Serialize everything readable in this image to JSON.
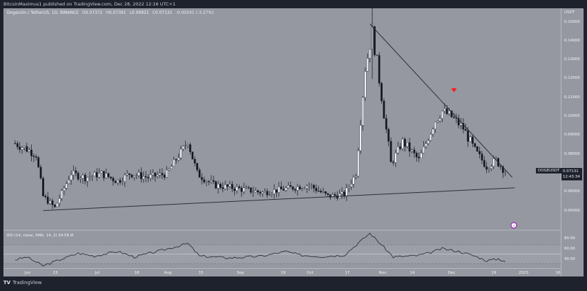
{
  "header": {
    "published_line": "BitcoinMaximus1 published on TradingView.com, Dec 28, 2022 12:16 UTC+1"
  },
  "legend": {
    "symbol": "Dogecoin / TetherUS, 1D, BINANCE",
    "open_label": "O",
    "open": "0.07372",
    "high_label": "H",
    "high": "0.07391",
    "low_label": "L",
    "low": "0.06921",
    "close_label": "C",
    "close": "0.07131",
    "change": "-0.00241 (-3.27%)"
  },
  "rsi_legend": {
    "label": "RSI (14, close, SMA, 14, 2)",
    "value": "34.58",
    "extra": "Ø"
  },
  "price_axis": {
    "currency": "USDT",
    "ticks": [
      "0.15000",
      "0.14000",
      "0.13000",
      "0.12000",
      "0.11000",
      "0.10000",
      "0.09000",
      "0.08000",
      "0.06000",
      "0.05000"
    ]
  },
  "rsi_axis": {
    "ticks": [
      "80.00",
      "60.00",
      "40.00"
    ]
  },
  "last_price": {
    "symbol": "DOGEUSDT",
    "price": "0.07131",
    "countdown": "12:43:34"
  },
  "time_axis": {
    "ticks": [
      "Jun",
      "13",
      "Jul",
      "18",
      "Aug",
      "15",
      "Sep",
      "19",
      "Oct",
      "17",
      "Nov",
      "14",
      "Dec",
      "19",
      "2023",
      "16"
    ]
  },
  "footer": {
    "logo": "TV",
    "brand": "TradingView"
  },
  "colors": {
    "background": "#1e222d",
    "pane": "#9598a1",
    "candle_up": "#ffffff",
    "candle_down": "#131722",
    "trendline": "#2a2e39",
    "marker": "#ff1a1a",
    "event_icon": "#9c27b0"
  },
  "chart_data": {
    "type": "candlestick",
    "title": "Dogecoin / TetherUS, 1D, BINANCE",
    "xlabel": "",
    "ylabel": "USDT",
    "ylim": [
      0.045,
      0.155
    ],
    "x_ticks": [
      "Jun",
      "13",
      "Jul",
      "18",
      "Aug",
      "15",
      "Sep",
      "19",
      "Oct",
      "17",
      "Nov",
      "14",
      "Dec",
      "19",
      "2023",
      "16"
    ],
    "y_ticks": [
      0.05,
      0.06,
      0.08,
      0.09,
      0.1,
      0.11,
      0.12,
      0.13,
      0.14,
      0.15
    ],
    "last": {
      "open": 0.07372,
      "high": 0.07391,
      "low": 0.06921,
      "close": 0.07131,
      "change": -0.00241,
      "change_pct": -3.27
    },
    "approx_close_path": [
      {
        "date": "2022-06-01",
        "close": 0.086
      },
      {
        "date": "2022-06-06",
        "close": 0.083
      },
      {
        "date": "2022-06-10",
        "close": 0.08
      },
      {
        "date": "2022-06-13",
        "close": 0.058
      },
      {
        "date": "2022-06-18",
        "close": 0.052
      },
      {
        "date": "2022-06-25",
        "close": 0.07
      },
      {
        "date": "2022-07-01",
        "close": 0.068
      },
      {
        "date": "2022-07-08",
        "close": 0.07
      },
      {
        "date": "2022-07-15",
        "close": 0.066
      },
      {
        "date": "2022-07-20",
        "close": 0.07
      },
      {
        "date": "2022-07-28",
        "close": 0.068
      },
      {
        "date": "2022-08-05",
        "close": 0.07
      },
      {
        "date": "2022-08-14",
        "close": 0.087
      },
      {
        "date": "2022-08-18",
        "close": 0.07
      },
      {
        "date": "2022-08-25",
        "close": 0.064
      },
      {
        "date": "2022-09-05",
        "close": 0.062
      },
      {
        "date": "2022-09-15",
        "close": 0.06
      },
      {
        "date": "2022-09-25",
        "close": 0.062
      },
      {
        "date": "2022-10-05",
        "close": 0.064
      },
      {
        "date": "2022-10-13",
        "close": 0.058
      },
      {
        "date": "2022-10-20",
        "close": 0.059
      },
      {
        "date": "2022-10-25",
        "close": 0.07
      },
      {
        "date": "2022-10-29",
        "close": 0.125
      },
      {
        "date": "2022-11-01",
        "close": 0.145
      },
      {
        "date": "2022-11-04",
        "close": 0.12
      },
      {
        "date": "2022-11-09",
        "close": 0.075
      },
      {
        "date": "2022-11-14",
        "close": 0.087
      },
      {
        "date": "2022-11-21",
        "close": 0.077
      },
      {
        "date": "2022-11-28",
        "close": 0.098
      },
      {
        "date": "2022-12-01",
        "close": 0.103
      },
      {
        "date": "2022-12-05",
        "close": 0.1
      },
      {
        "date": "2022-12-10",
        "close": 0.094
      },
      {
        "date": "2022-12-15",
        "close": 0.082
      },
      {
        "date": "2022-12-20",
        "close": 0.074
      },
      {
        "date": "2022-12-24",
        "close": 0.077
      },
      {
        "date": "2022-12-28",
        "close": 0.07131
      }
    ],
    "annotations": [
      {
        "type": "trendline",
        "label": "descending resistance",
        "from": {
          "date": "2022-10-31",
          "price": 0.149
        },
        "to": {
          "date": "2022-12-31",
          "price": 0.068
        }
      },
      {
        "type": "trendline",
        "label": "ascending support",
        "from": {
          "date": "2022-06-13",
          "price": 0.0505
        },
        "to": {
          "date": "2023-01-01",
          "price": 0.0625
        }
      },
      {
        "type": "marker",
        "shape": "down-triangle",
        "color": "#ff1a1a",
        "date": "2022-12-06",
        "price": 0.114
      }
    ],
    "rsi": {
      "label": "RSI (14, close, SMA, 14, 2)",
      "last": 34.58,
      "ylim": [
        20,
        100
      ],
      "bands": [
        30,
        50,
        70
      ],
      "approx_values": [
        {
          "date": "2022-06-01",
          "value": 38
        },
        {
          "date": "2022-06-06",
          "value": 44
        },
        {
          "date": "2022-06-13",
          "value": 25
        },
        {
          "date": "2022-06-20",
          "value": 38
        },
        {
          "date": "2022-06-28",
          "value": 52
        },
        {
          "date": "2022-07-05",
          "value": 46
        },
        {
          "date": "2022-07-15",
          "value": 56
        },
        {
          "date": "2022-07-22",
          "value": 44
        },
        {
          "date": "2022-08-01",
          "value": 56
        },
        {
          "date": "2022-08-14",
          "value": 73
        },
        {
          "date": "2022-08-19",
          "value": 46
        },
        {
          "date": "2022-09-01",
          "value": 42
        },
        {
          "date": "2022-09-15",
          "value": 46
        },
        {
          "date": "2022-09-25",
          "value": 56
        },
        {
          "date": "2022-10-01",
          "value": 48
        },
        {
          "date": "2022-10-10",
          "value": 45
        },
        {
          "date": "2022-10-20",
          "value": 48
        },
        {
          "date": "2022-10-27",
          "value": 78
        },
        {
          "date": "2022-10-31",
          "value": 95
        },
        {
          "date": "2022-11-05",
          "value": 70
        },
        {
          "date": "2022-11-10",
          "value": 44
        },
        {
          "date": "2022-11-20",
          "value": 47
        },
        {
          "date": "2022-11-25",
          "value": 52
        },
        {
          "date": "2022-12-01",
          "value": 62
        },
        {
          "date": "2022-12-08",
          "value": 56
        },
        {
          "date": "2022-12-15",
          "value": 46
        },
        {
          "date": "2022-12-20",
          "value": 36
        },
        {
          "date": "2022-12-25",
          "value": 40
        },
        {
          "date": "2022-12-28",
          "value": 34.58
        }
      ]
    }
  }
}
